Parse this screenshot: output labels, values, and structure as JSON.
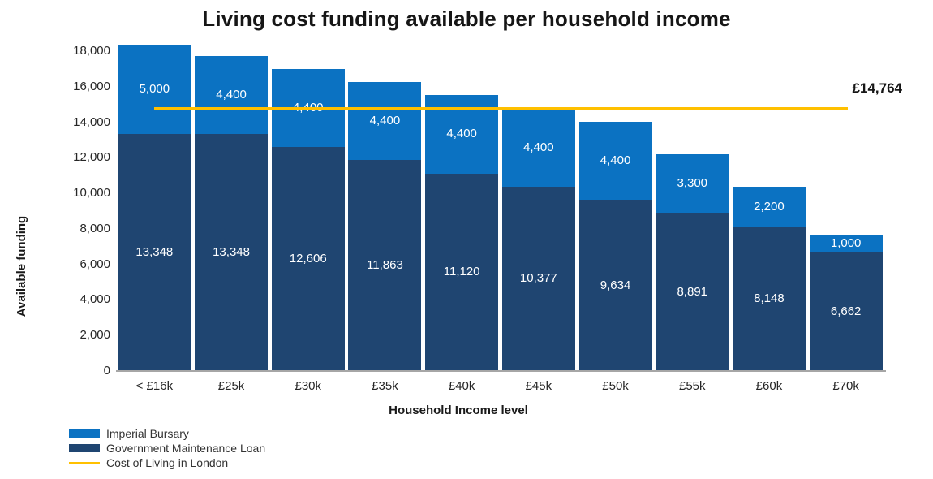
{
  "title": "Living cost funding available per household income",
  "chart_data": {
    "type": "bar",
    "stacked": true,
    "title": "Living cost funding available per household income",
    "xlabel": "Household Income level",
    "ylabel": "Available funding",
    "ylim": [
      0,
      18000
    ],
    "ytick_step": 2000,
    "grid": false,
    "legend_position": "bottom-left",
    "categories": [
      "< £16k",
      "£25k",
      "£30k",
      "£35k",
      "£40k",
      "£45k",
      "£50k",
      "£55k",
      "£60k",
      "£70k"
    ],
    "series": [
      {
        "name": "Government Maintenance Loan",
        "color": "#1F4571",
        "values": [
          13348,
          13348,
          12606,
          11863,
          11120,
          10377,
          9634,
          8891,
          8148,
          6662
        ]
      },
      {
        "name": "Imperial Bursary",
        "color": "#0B72C2",
        "values": [
          5000,
          4400,
          4400,
          4400,
          4400,
          4400,
          4400,
          3300,
          2200,
          1000
        ]
      }
    ],
    "reference_line": {
      "name": "Cost of Living in London",
      "value": 14764,
      "label": "£14,764",
      "color": "#FFC000"
    },
    "legend_items": [
      "Imperial Bursary",
      "Government Maintenance Loan",
      "Cost of Living in London"
    ]
  }
}
